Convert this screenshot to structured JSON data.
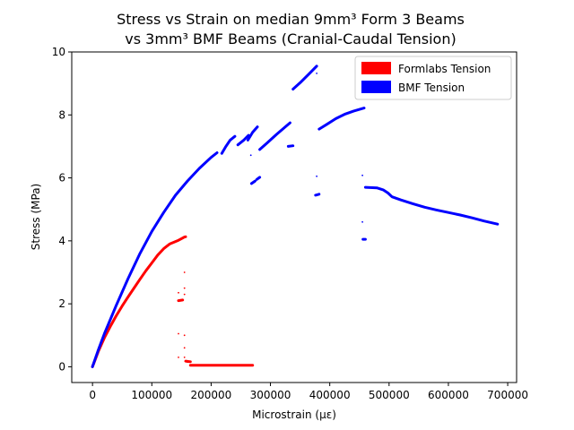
{
  "chart_data": {
    "type": "scatter",
    "title_lines": [
      "Stress vs Strain on median 9mm³ Form 3 Beams",
      "vs 3mm³ BMF Beams (Cranial-Caudal Tension)"
    ],
    "xlabel": "Microstrain (με)",
    "ylabel": "Stress (MPa)",
    "xlim": [
      -35000,
      715000
    ],
    "ylim": [
      -0.5,
      10.0
    ],
    "xticks": [
      0,
      100000,
      200000,
      300000,
      400000,
      500000,
      600000,
      700000
    ],
    "xtick_labels": [
      "0",
      "100000",
      "200000",
      "300000",
      "400000",
      "500000",
      "600000",
      "700000"
    ],
    "yticks": [
      0,
      2,
      4,
      6,
      8,
      10
    ],
    "ytick_labels": [
      "0",
      "2",
      "4",
      "6",
      "8",
      "10"
    ],
    "grid": false,
    "legend_position": "top-right",
    "series": [
      {
        "name": "Formlabs Tension",
        "color": "#ff0000",
        "segments": [
          [
            [
              0,
              0
            ],
            [
              5000,
              0.25
            ],
            [
              10000,
              0.5
            ],
            [
              20000,
              0.92
            ],
            [
              30000,
              1.28
            ],
            [
              40000,
              1.62
            ],
            [
              50000,
              1.93
            ],
            [
              60000,
              2.22
            ],
            [
              70000,
              2.5
            ],
            [
              80000,
              2.78
            ],
            [
              90000,
              3.05
            ],
            [
              100000,
              3.3
            ],
            [
              110000,
              3.55
            ],
            [
              120000,
              3.75
            ],
            [
              130000,
              3.9
            ],
            [
              140000,
              3.98
            ],
            [
              145000,
              4.02
            ],
            [
              150000,
              4.07
            ],
            [
              155000,
              4.12
            ],
            [
              157000,
              4.13
            ]
          ],
          [
            [
              145000,
              2.1
            ],
            [
              152000,
              2.12
            ]
          ],
          [
            [
              157000,
              0.18
            ],
            [
              165000,
              0.16
            ]
          ],
          [
            [
              165000,
              0.05
            ],
            [
              270000,
              0.05
            ]
          ]
        ],
        "points": [
          [
            145000,
            2.35
          ],
          [
            155000,
            3.0
          ],
          [
            155000,
            2.5
          ],
          [
            155000,
            2.3
          ],
          [
            145000,
            1.05
          ],
          [
            155000,
            1.0
          ],
          [
            155000,
            0.6
          ],
          [
            145000,
            0.3
          ],
          [
            155000,
            0.3
          ],
          [
            160000,
            0.15
          ]
        ]
      },
      {
        "name": "BMF Tension",
        "color": "#0000ff",
        "segments": [
          [
            [
              0,
              0
            ],
            [
              10000,
              0.55
            ],
            [
              20000,
              1.05
            ],
            [
              40000,
              1.95
            ],
            [
              60000,
              2.8
            ],
            [
              80000,
              3.6
            ],
            [
              100000,
              4.3
            ],
            [
              120000,
              4.9
            ],
            [
              140000,
              5.45
            ],
            [
              160000,
              5.9
            ],
            [
              180000,
              6.3
            ],
            [
              200000,
              6.65
            ],
            [
              210000,
              6.8
            ]
          ],
          [
            [
              218000,
              6.78
            ],
            [
              225000,
              7.0
            ],
            [
              232000,
              7.2
            ],
            [
              240000,
              7.32
            ]
          ],
          [
            [
              245000,
              7.05
            ],
            [
              255000,
              7.2
            ],
            [
              263000,
              7.35
            ]
          ],
          [
            [
              262000,
              7.2
            ],
            [
              270000,
              7.45
            ],
            [
              278000,
              7.62
            ]
          ],
          [
            [
              268000,
              5.82
            ],
            [
              274000,
              5.9
            ]
          ],
          [
            [
              277000,
              5.95
            ],
            [
              282000,
              6.02
            ]
          ],
          [
            [
              282000,
              6.9
            ],
            [
              295000,
              7.12
            ],
            [
              310000,
              7.38
            ],
            [
              325000,
              7.62
            ],
            [
              333000,
              7.75
            ]
          ],
          [
            [
              330000,
              7.0
            ],
            [
              338000,
              7.02
            ]
          ],
          [
            [
              338000,
              8.82
            ],
            [
              350000,
              9.02
            ],
            [
              365000,
              9.3
            ],
            [
              378000,
              9.55
            ]
          ],
          [
            [
              376000,
              5.45
            ],
            [
              382000,
              5.48
            ]
          ],
          [
            [
              382000,
              7.55
            ],
            [
              395000,
              7.7
            ],
            [
              410000,
              7.88
            ],
            [
              425000,
              8.02
            ],
            [
              440000,
              8.12
            ],
            [
              458000,
              8.22
            ]
          ],
          [
            [
              456000,
              4.05
            ],
            [
              460000,
              4.05
            ]
          ],
          [
            [
              460000,
              5.7
            ],
            [
              480000,
              5.68
            ],
            [
              490000,
              5.62
            ],
            [
              498000,
              5.52
            ],
            [
              505000,
              5.4
            ],
            [
              520000,
              5.3
            ],
            [
              540000,
              5.18
            ],
            [
              560000,
              5.07
            ],
            [
              580000,
              4.98
            ],
            [
              600000,
              4.9
            ],
            [
              620000,
              4.82
            ],
            [
              640000,
              4.73
            ],
            [
              660000,
              4.63
            ],
            [
              683000,
              4.53
            ]
          ]
        ],
        "points": [
          [
            267000,
            6.72
          ],
          [
            378000,
            9.32
          ],
          [
            378000,
            6.05
          ],
          [
            455000,
            6.08
          ],
          [
            455000,
            4.6
          ]
        ]
      }
    ]
  }
}
